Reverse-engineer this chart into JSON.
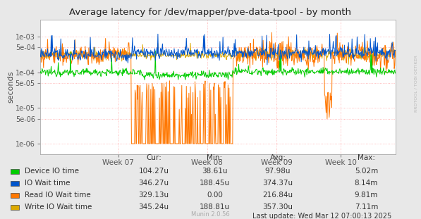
{
  "title": "Average latency for /dev/mapper/pve-data-tpool - by month",
  "ylabel": "seconds",
  "background_color": "#e8e8e8",
  "plot_bg_color": "#ffffff",
  "grid_color": "#ffaaaa",
  "yticks": [
    1e-06,
    5e-06,
    1e-05,
    5e-05,
    0.0001,
    0.0005,
    0.001
  ],
  "ytick_labels": [
    "1e-06",
    "5e-06",
    "1e-05",
    "5e-05",
    "1e-04",
    "5e-04",
    "1e-03"
  ],
  "ylim_low": 5e-07,
  "ylim_high": 0.003,
  "week_labels": [
    "Week 07",
    "Week 08",
    "Week 09",
    "Week 10"
  ],
  "legend_entries": [
    "Device IO time",
    "IO Wait time",
    "Read IO Wait time",
    "Write IO Wait time"
  ],
  "legend_colors": [
    "#00cc00",
    "#0055cc",
    "#ff7700",
    "#ddaa00"
  ],
  "cur_vals": [
    "104.27u",
    "346.27u",
    "329.13u",
    "345.24u"
  ],
  "min_vals": [
    "38.61u",
    "188.45u",
    "0.00",
    "188.81u"
  ],
  "avg_vals": [
    "97.98u",
    "374.37u",
    "216.84u",
    "357.30u"
  ],
  "max_vals": [
    "5.02m",
    "8.14m",
    "9.81m",
    "7.11m"
  ],
  "last_update": "Last update: Wed Mar 12 07:00:13 2025",
  "munin_label": "Munin 2.0.56",
  "rrdtool_label": "RRDTOOL / TOBI OETIKER"
}
